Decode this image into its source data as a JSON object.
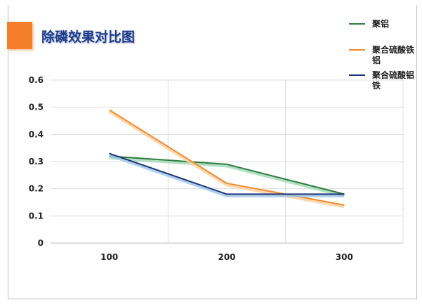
{
  "chart_data": {
    "type": "line",
    "title": "除磷效果对比图",
    "categories": [
      "100",
      "200",
      "300"
    ],
    "ylim": [
      0,
      0.6
    ],
    "yticks": [
      "0",
      "0.1",
      "0.2",
      "0.3",
      "0.4",
      "0.5",
      "0.6"
    ],
    "grid": true,
    "legend_placement": "top-right",
    "series": [
      {
        "name": "聚铝",
        "color": "#2e7d3e",
        "values": [
          0.32,
          0.29,
          0.18
        ]
      },
      {
        "name": "聚合硫酸铁铝",
        "color": "#f4892e",
        "values": [
          0.49,
          0.22,
          0.14
        ]
      },
      {
        "name": "聚合硫酸铝铁",
        "color": "#1f3478",
        "values": [
          0.33,
          0.18,
          0.18
        ]
      }
    ]
  },
  "accent_color": "#f47e2a"
}
